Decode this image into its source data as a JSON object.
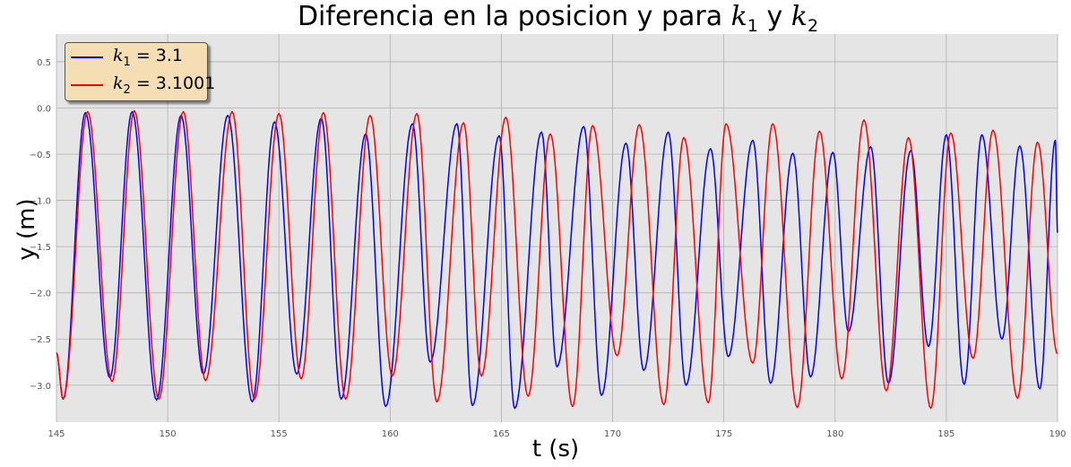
{
  "title": {
    "prefix": "Diferencia en la posicion y para ",
    "k1_symbol": "k",
    "k1_sub": "1",
    "conj": " y ",
    "k2_symbol": "k",
    "k2_sub": "2"
  },
  "legend": {
    "items": [
      {
        "symbol": "k",
        "sub": "1",
        "eq": " = 3.1",
        "color": "#0000ff"
      },
      {
        "symbol": "k",
        "sub": "2",
        "eq": " = 3.1001",
        "color": "#ff0000"
      }
    ]
  },
  "chart_data": {
    "type": "line",
    "xlabel": "t (s)",
    "ylabel": "y (m)",
    "xlim": [
      145,
      190
    ],
    "ylim": [
      -3.4,
      0.8
    ],
    "xticks": [
      145,
      150,
      155,
      160,
      165,
      170,
      175,
      180,
      185,
      190
    ],
    "xtick_labels": [
      "145",
      "150",
      "155",
      "160",
      "165",
      "170",
      "175",
      "180",
      "185",
      "190"
    ],
    "yticks": [
      0.5,
      0.0,
      -0.5,
      -1.0,
      -1.5,
      -2.0,
      -2.5,
      -3.0
    ],
    "ytick_labels": [
      "0.5",
      "0.0",
      "−0.5",
      "−1.0",
      "−1.5",
      "−2.0",
      "−2.5",
      "−3.0"
    ],
    "grid": true,
    "legend_position": "top-left",
    "colors": {
      "plot_bg": "#e5e5e5",
      "grid": "#b0b0b0"
    },
    "series": [
      {
        "name": "k1 = 3.1",
        "color": "#0000ff",
        "maxima": [
          [
            146.3,
            -0.05
          ],
          [
            148.4,
            -0.04
          ],
          [
            150.6,
            -0.08
          ],
          [
            152.7,
            -0.08
          ],
          [
            154.8,
            -0.15
          ],
          [
            156.9,
            -0.11
          ],
          [
            158.9,
            -0.28
          ],
          [
            161.0,
            -0.17
          ],
          [
            163.0,
            -0.17
          ],
          [
            164.9,
            -0.3
          ],
          [
            166.8,
            -0.26
          ],
          [
            168.7,
            -0.2
          ],
          [
            170.6,
            -0.38
          ],
          [
            172.5,
            -0.26
          ],
          [
            174.4,
            -0.44
          ],
          [
            176.3,
            -0.35
          ],
          [
            178.1,
            -0.49
          ],
          [
            179.9,
            -0.48
          ],
          [
            181.6,
            -0.42
          ],
          [
            183.4,
            -0.46
          ],
          [
            185.0,
            -0.29
          ],
          [
            186.6,
            -0.29
          ],
          [
            188.3,
            -0.41
          ],
          [
            189.9,
            -0.35
          ]
        ],
        "minima": [
          [
            145.3,
            -3.15
          ],
          [
            147.4,
            -2.92
          ],
          [
            149.5,
            -3.16
          ],
          [
            151.6,
            -2.88
          ],
          [
            153.8,
            -3.18
          ],
          [
            155.8,
            -2.88
          ],
          [
            157.8,
            -3.15
          ],
          [
            159.8,
            -3.23
          ],
          [
            161.8,
            -2.75
          ],
          [
            163.7,
            -3.22
          ],
          [
            165.6,
            -3.25
          ],
          [
            167.5,
            -2.8
          ],
          [
            169.5,
            -3.11
          ],
          [
            171.4,
            -2.84
          ],
          [
            173.3,
            -3.0
          ],
          [
            175.2,
            -2.69
          ],
          [
            177.1,
            -2.98
          ],
          [
            178.9,
            -2.91
          ],
          [
            180.6,
            -2.42
          ],
          [
            182.4,
            -2.98
          ],
          [
            184.2,
            -2.58
          ],
          [
            185.8,
            -2.99
          ],
          [
            187.5,
            -2.5
          ],
          [
            189.2,
            -3.04
          ]
        ]
      },
      {
        "name": "k2 = 3.1001",
        "color": "#ff0000",
        "maxima": [
          [
            146.4,
            -0.04
          ],
          [
            148.5,
            -0.03
          ],
          [
            150.7,
            -0.04
          ],
          [
            152.9,
            -0.04
          ],
          [
            155.0,
            -0.06
          ],
          [
            157.0,
            -0.05
          ],
          [
            159.1,
            -0.08
          ],
          [
            161.2,
            -0.06
          ],
          [
            163.3,
            -0.16
          ],
          [
            165.2,
            -0.1
          ],
          [
            167.2,
            -0.28
          ],
          [
            169.1,
            -0.19
          ],
          [
            171.2,
            -0.18
          ],
          [
            173.2,
            -0.32
          ],
          [
            175.1,
            -0.17
          ],
          [
            177.2,
            -0.17
          ],
          [
            179.3,
            -0.25
          ],
          [
            181.3,
            -0.13
          ],
          [
            183.3,
            -0.32
          ],
          [
            185.2,
            -0.27
          ],
          [
            187.1,
            -0.24
          ],
          [
            189.1,
            -0.37
          ]
        ],
        "minima": [
          [
            145.3,
            -3.15
          ],
          [
            147.5,
            -2.96
          ],
          [
            149.6,
            -3.15
          ],
          [
            151.7,
            -2.95
          ],
          [
            153.9,
            -3.15
          ],
          [
            156.0,
            -2.93
          ],
          [
            158.0,
            -3.15
          ],
          [
            160.1,
            -2.9
          ],
          [
            162.1,
            -3.18
          ],
          [
            164.1,
            -2.9
          ],
          [
            166.2,
            -3.12
          ],
          [
            168.2,
            -3.23
          ],
          [
            170.2,
            -2.68
          ],
          [
            172.3,
            -3.21
          ],
          [
            174.3,
            -3.19
          ],
          [
            176.3,
            -2.76
          ],
          [
            178.3,
            -3.24
          ],
          [
            180.3,
            -2.93
          ],
          [
            182.3,
            -3.06
          ],
          [
            184.3,
            -3.25
          ],
          [
            186.2,
            -2.71
          ],
          [
            188.2,
            -3.14
          ],
          [
            190.0,
            -2.66
          ]
        ]
      }
    ]
  }
}
